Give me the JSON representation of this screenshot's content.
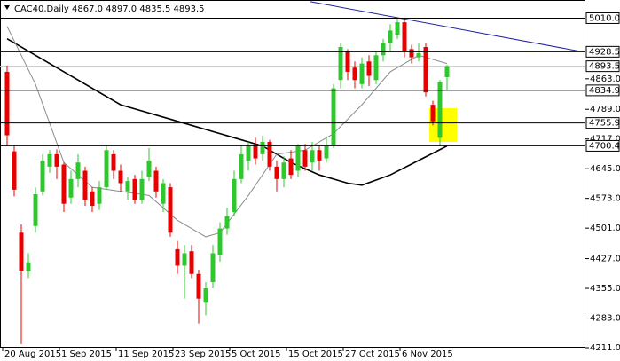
{
  "chart_data": {
    "type": "candlestick",
    "title": "CAC40,Daily  4867.0 4897.0 4835.5 4893.5",
    "categories": [
      "20 Aug 2015",
      null,
      null,
      null,
      null,
      null,
      null,
      null,
      "1 Sep 2015",
      null,
      null,
      null,
      null,
      null,
      null,
      null,
      "11 Sep 2015",
      null,
      null,
      null,
      null,
      null,
      null,
      null,
      "23 Sep 2015",
      null,
      null,
      null,
      null,
      null,
      null,
      null,
      "5 Oct 2015",
      null,
      null,
      null,
      null,
      null,
      null,
      null,
      "15 Oct 2015",
      null,
      null,
      null,
      null,
      null,
      null,
      null,
      "27 Oct 2015",
      null,
      null,
      null,
      null,
      null,
      null,
      null,
      "6 Nov 2015",
      null,
      null,
      null,
      null,
      null,
      null
    ],
    "open": [
      4880,
      4687,
      4490,
      4396,
      4506,
      4590,
      4650,
      4680,
      4655,
      4575,
      4620,
      4640,
      4590,
      4560,
      4600,
      4680,
      4640,
      4590,
      4620,
      4570,
      4625,
      4640,
      4560,
      4600,
      4450,
      4410,
      4445,
      4390,
      4320,
      4370,
      4435,
      4500,
      4540,
      4620,
      4665,
      4700,
      4680,
      4710,
      4650,
      4620,
      4670,
      4640,
      4690,
      4660,
      4690,
      4670,
      4700,
      4860,
      4930,
      4890,
      4850,
      4905,
      4860,
      4920,
      4950,
      4970,
      5000,
      4935,
      4915,
      4940,
      4800,
      4720,
      4867
    ],
    "high": [
      4895,
      4700,
      4510,
      4440,
      4600,
      4680,
      4690,
      4692,
      4660,
      4640,
      4680,
      4650,
      4600,
      4615,
      4700,
      4690,
      4655,
      4625,
      4630,
      4640,
      4695,
      4650,
      4620,
      4610,
      4470,
      4460,
      4460,
      4400,
      4370,
      4460,
      4515,
      4550,
      4640,
      4700,
      4710,
      4720,
      4725,
      4715,
      4665,
      4675,
      4690,
      4705,
      4705,
      4710,
      4700,
      4720,
      4850,
      4950,
      4935,
      4905,
      4915,
      4920,
      4930,
      4960,
      4995,
      5010,
      5005,
      4945,
      4950,
      4950,
      4810,
      4860,
      4897
    ],
    "low": [
      4700,
      4578,
      4220,
      4380,
      4490,
      4580,
      4635,
      4620,
      4540,
      4560,
      4600,
      4555,
      4540,
      4545,
      4595,
      4620,
      4590,
      4570,
      4560,
      4560,
      4615,
      4575,
      4540,
      4480,
      4390,
      4330,
      4380,
      4270,
      4290,
      4355,
      4420,
      4485,
      4530,
      4610,
      4640,
      4655,
      4665,
      4640,
      4590,
      4600,
      4620,
      4625,
      4640,
      4640,
      4640,
      4660,
      4695,
      4840,
      4860,
      4840,
      4840,
      4845,
      4850,
      4905,
      4930,
      4960,
      4915,
      4900,
      4905,
      4820,
      4750,
      4700,
      4835.5
    ],
    "close": [
      4726,
      4594,
      4396,
      4418,
      4583,
      4665,
      4680,
      4650,
      4560,
      4620,
      4660,
      4570,
      4555,
      4600,
      4690,
      4640,
      4610,
      4615,
      4570,
      4620,
      4665,
      4590,
      4610,
      4490,
      4410,
      4440,
      4390,
      4330,
      4355,
      4440,
      4500,
      4530,
      4620,
      4680,
      4700,
      4670,
      4710,
      4650,
      4620,
      4660,
      4630,
      4700,
      4650,
      4690,
      4665,
      4700,
      4840,
      4940,
      4880,
      4860,
      4900,
      4870,
      4920,
      4950,
      4980,
      5000,
      4930,
      4915,
      4925,
      4830,
      4760,
      4855,
      4893.5
    ],
    "up_color": "#2ec82e",
    "down_color": "#e80000",
    "lines": [
      {
        "color": "#000000",
        "width": 1.6,
        "x": [
          0,
          8,
          16,
          24,
          32,
          36,
          40,
          44,
          48,
          50,
          54,
          58,
          62
        ],
        "values": [
          4960,
          4880,
          4800,
          4760,
          4720,
          4700,
          4660,
          4630,
          4610,
          4605,
          4630,
          4665,
          4700
        ]
      },
      {
        "color": "#8c8c8c",
        "width": 1,
        "x": [
          0,
          4,
          8,
          12,
          16,
          20,
          24,
          28,
          30,
          34,
          38,
          42,
          46,
          50,
          54,
          58,
          62
        ],
        "values": [
          4990,
          4850,
          4660,
          4600,
          4590,
          4580,
          4520,
          4480,
          4490,
          4580,
          4680,
          4690,
          4730,
          4800,
          4880,
          4920,
          4900
        ]
      },
      {
        "color": "#2020a0",
        "width": 1,
        "x": [
          42.75,
          80.9
        ],
        "values": [
          5050,
          4929
        ]
      }
    ],
    "levels": [
      {
        "value": 5010,
        "label": "5010.0"
      },
      {
        "value": 4928.5,
        "label": "4928.5"
      },
      {
        "value": 4834.9,
        "label": "4834.9"
      },
      {
        "value": 4755.9,
        "label": "4755.9"
      },
      {
        "value": 4700.4,
        "label": "4700.4"
      }
    ],
    "current": {
      "value": 4893.5,
      "label": "4893.5"
    },
    "ylim": [
      4211,
      5054
    ],
    "yticks": [
      {
        "value": 4211,
        "label": "4211.0"
      },
      {
        "value": 4283,
        "label": "4283.0"
      },
      {
        "value": 4355,
        "label": "4355.0"
      },
      {
        "value": 4427,
        "label": "4427.0"
      },
      {
        "value": 4501,
        "label": "4501.0"
      },
      {
        "value": 4573,
        "label": "4573.0"
      },
      {
        "value": 4645,
        "label": "4645.0"
      },
      {
        "value": 4717,
        "label": "4717.0"
      },
      {
        "value": 4789,
        "label": "4789.0"
      },
      {
        "value": 4863,
        "label": "4863.0"
      }
    ]
  }
}
